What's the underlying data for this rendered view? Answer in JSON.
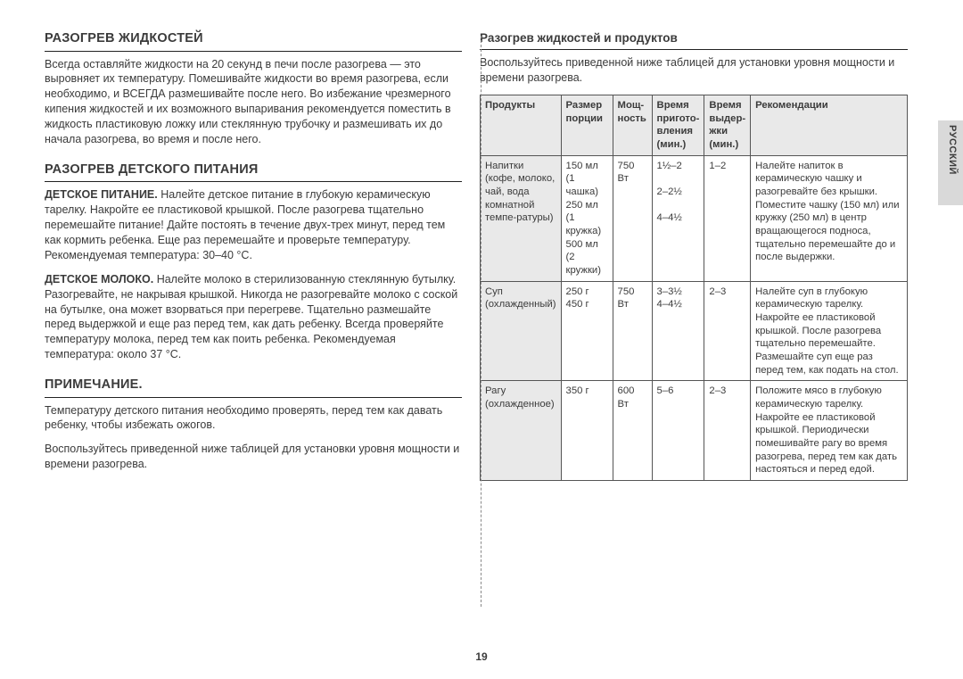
{
  "side_label": "РУССКИЙ",
  "page_number": "19",
  "left": {
    "h_liquids": "РАЗОГРЕВ ЖИДКОСТЕЙ",
    "p_liquids": "Всегда оставляйте жидкости на 20 секунд в печи после разогрева — это выровняет их температуру. Помешивайте жидкости во время разогрева, если необходимо, и ВСЕГДА размешивайте после него. Во избежание чрезмерного кипения жидкостей и их возможного выпаривания рекомендуется поместить в жидкость пластиковую ложку или стеклянную трубочку и размешивать их до начала разогрева, во время и после него.",
    "h_baby": "РАЗОГРЕВ ДЕТСКОГО ПИТАНИЯ",
    "baby_food_b": "ДЕТСКОЕ ПИТАНИЕ.",
    "baby_food": " Налейте детское питание в глубокую керамическую тарелку. Накройте ее пластиковой крышкой. После разогрева тщательно перемешайте питание! Дайте постоять в течение двух-трех минут, перед тем как кормить ребенка. Еще раз перемешайте и проверьте температуру. Рекомендуемая температура: 30–40 °С.",
    "baby_milk_b": "ДЕТСКОЕ МОЛОКО.",
    "baby_milk": " Налейте молоко в стерилизованную стеклянную бутылку. Разогревайте, не накрывая крышкой. Никогда не разогревайте молоко с соской на бутылке, она может взорваться при перегреве. Тщательно размешайте перед выдержкой и еще раз перед тем, как дать ребенку. Всегда проверяйте температуру молока, перед тем как поить ребенка. Рекомендуемая температура: около 37 °С.",
    "h_note": "ПРИМЕЧАНИЕ.",
    "note1": "Температуру детского питания необходимо проверять, перед тем как давать ребенку, чтобы избежать ожогов.",
    "note2": "Воспользуйтесь приведенной ниже таблицей для установки уровня мощности и времени разогрева."
  },
  "right": {
    "h_table": "Разогрев жидкостей и продуктов",
    "intro": "Воспользуйтесь приведенной ниже таблицей для установки уровня мощности и времени разогрева.",
    "headers": {
      "c1": "Продукты",
      "c2": "Размер порции",
      "c3": "Мощ-ность",
      "c4": "Время пригото-вления (мин.)",
      "c5": "Время выдер-жки (мин.)",
      "c6": "Рекомендации"
    },
    "rows": [
      {
        "prod": "Напитки (кофе, молоко, чай, вода комнатной темпе-ратуры)",
        "size": "150 мл (1 чашка)\n250 мл (1 кружка)\n500 мл (2 кружки)",
        "power": "750 Вт",
        "cook": "1½–2\n\n2–2½\n\n4–4½",
        "stand": "1–2",
        "rec": "Налейте напиток в керамическую чашку и разогревайте без крышки. Поместите чашку (150 мл) или кружку (250 мл) в центр вращающегося подноса, тщательно перемешайте до и после выдержки."
      },
      {
        "prod": "Суп (охлажденный)",
        "size": "250 г\n450 г",
        "power": "750 Вт",
        "cook": "3–3½\n4–4½",
        "stand": "2–3",
        "rec": "Налейте суп в глубокую керамическую тарелку. Накройте ее пластиковой крышкой. После разогрева тщательно перемешайте. Размешайте суп еще раз перед тем, как подать на стол."
      },
      {
        "prod": "Рагу (охлажденное)",
        "size": "350 г",
        "power": "600 Вт",
        "cook": "5–6",
        "stand": "2–3",
        "rec": "Положите мясо в глубокую керамическую тарелку. Накройте ее пластиковой крышкой. Периодически помешивайте рагу во время разогрева, перед тем как дать настояться и перед едой."
      }
    ]
  }
}
